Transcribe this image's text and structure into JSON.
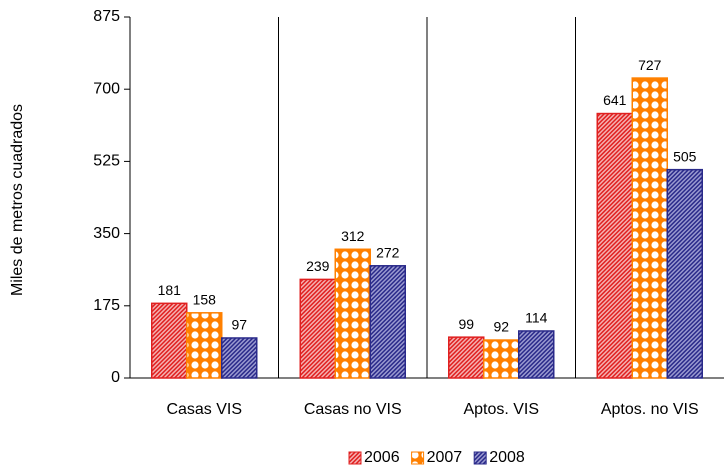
{
  "chart_data": {
    "type": "bar",
    "y_label": "Miles de metros cuadrados",
    "categories": [
      "Casas VIS",
      "Casas no VIS",
      "Aptos. VIS",
      "Aptos. no VIS"
    ],
    "series": [
      {
        "name": "2006",
        "color": "#e02020",
        "values": [
          181,
          239,
          99,
          641
        ]
      },
      {
        "name": "2007",
        "color": "#ff8000",
        "values": [
          158,
          312,
          92,
          727
        ]
      },
      {
        "name": "2008",
        "color": "#2a2a8a",
        "values": [
          97,
          272,
          114,
          505
        ]
      }
    ],
    "ylim": [
      0,
      875
    ],
    "yticks": [
      0,
      175,
      350,
      525,
      700,
      875
    ]
  }
}
